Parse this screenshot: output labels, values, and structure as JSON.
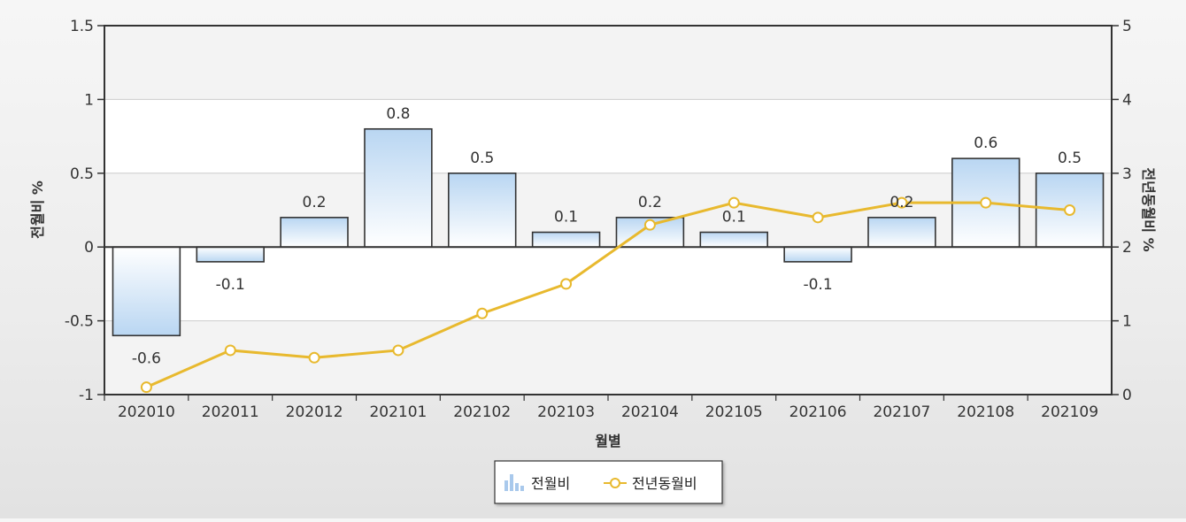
{
  "chart_data": {
    "type": "bar+line",
    "categories": [
      "202010",
      "202011",
      "202012",
      "202101",
      "202102",
      "202103",
      "202104",
      "202105",
      "202106",
      "202107",
      "202108",
      "202109"
    ],
    "series": [
      {
        "name": "전월비",
        "type": "bar",
        "axis": "left",
        "values": [
          -0.6,
          -0.1,
          0.2,
          0.8,
          0.5,
          0.1,
          0.2,
          0.1,
          -0.1,
          0.2,
          0.6,
          0.5
        ]
      },
      {
        "name": "전년동월비",
        "type": "line",
        "axis": "right",
        "values": [
          0.1,
          0.6,
          0.5,
          0.6,
          1.1,
          1.5,
          2.3,
          2.6,
          2.4,
          2.6,
          2.6,
          2.5
        ]
      }
    ],
    "xlabel": "월별",
    "ylabel_left": "전월비 %",
    "ylabel_right": "전년동월비 %",
    "ylim_left": [
      -1,
      1.5
    ],
    "yticks_left": [
      "-1",
      "-0.5",
      "0",
      "0.5",
      "1",
      "1.5"
    ],
    "ylim_right": [
      0,
      5
    ],
    "yticks_right": [
      "0",
      "1",
      "2",
      "3",
      "4",
      "5"
    ],
    "grid": true,
    "legend_position": "bottom-center",
    "colors": {
      "bar_top": "#b9d6f2",
      "bar_bottom": "#ffffff",
      "bar_stroke": "#333333",
      "line": "#e8b92e",
      "gridline": "#cccccc"
    }
  }
}
